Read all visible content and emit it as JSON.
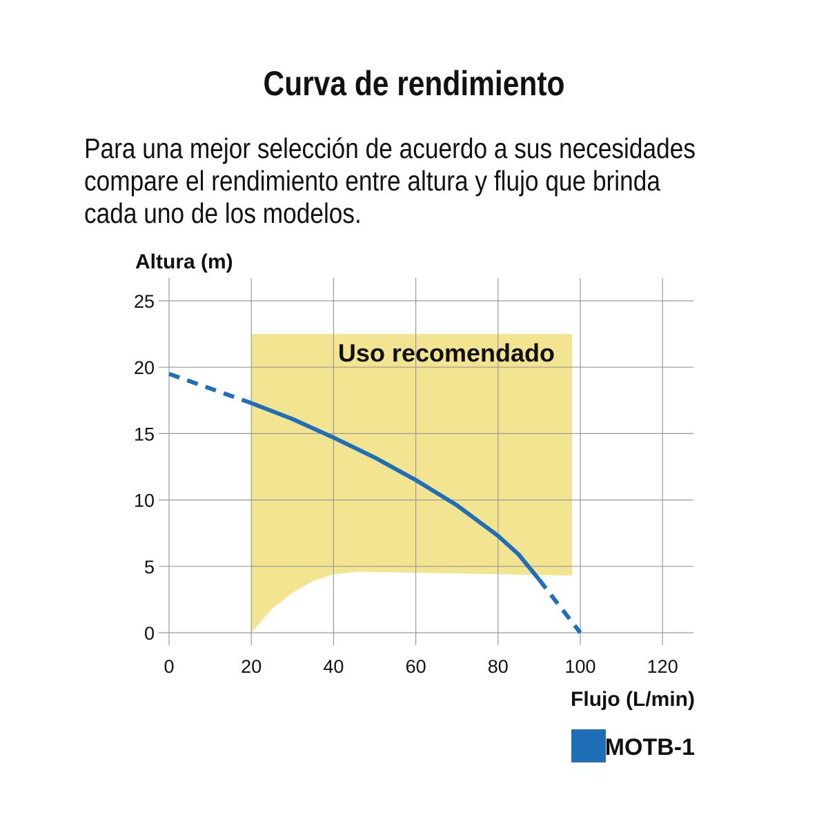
{
  "title": "Curva de rendimiento",
  "subtitle": "Para una mejor selección de acuerdo a sus necesidades\ncompare el rendimiento entre altura y flujo que brinda\ncada uno de los modelos.",
  "chart_data": {
    "type": "line",
    "xlabel": "Flujo (L/min)",
    "ylabel": "Altura (m)",
    "xlim": [
      0,
      120
    ],
    "ylim": [
      0,
      25
    ],
    "xticks": [
      0,
      20,
      40,
      60,
      80,
      100,
      120
    ],
    "yticks": [
      0,
      5,
      10,
      15,
      20,
      25
    ],
    "grid": true,
    "legend_placement": "bottom-right",
    "recommended_region": {
      "label": "Uso recomendado",
      "color": "#f2e490",
      "x_range": [
        20,
        98
      ],
      "top": 22.5,
      "bottom": [
        [
          20,
          0
        ],
        [
          25,
          1.8
        ],
        [
          30,
          3.0
        ],
        [
          35,
          3.9
        ],
        [
          40,
          4.4
        ],
        [
          46,
          4.6
        ],
        [
          98,
          4.3
        ]
      ]
    },
    "series": [
      {
        "name": "MOTB-1",
        "color": "#1f6fb8",
        "dashed_start": [
          [
            0,
            19.5
          ],
          [
            20,
            17.3
          ]
        ],
        "points": [
          [
            20,
            17.3
          ],
          [
            30,
            16.1
          ],
          [
            40,
            14.7
          ],
          [
            50,
            13.2
          ],
          [
            60,
            11.5
          ],
          [
            70,
            9.6
          ],
          [
            80,
            7.3
          ],
          [
            85,
            5.9
          ],
          [
            90,
            4.0
          ]
        ],
        "dashed_end": [
          [
            90,
            4.0
          ],
          [
            95,
            2.0
          ],
          [
            100,
            0
          ]
        ]
      }
    ]
  }
}
